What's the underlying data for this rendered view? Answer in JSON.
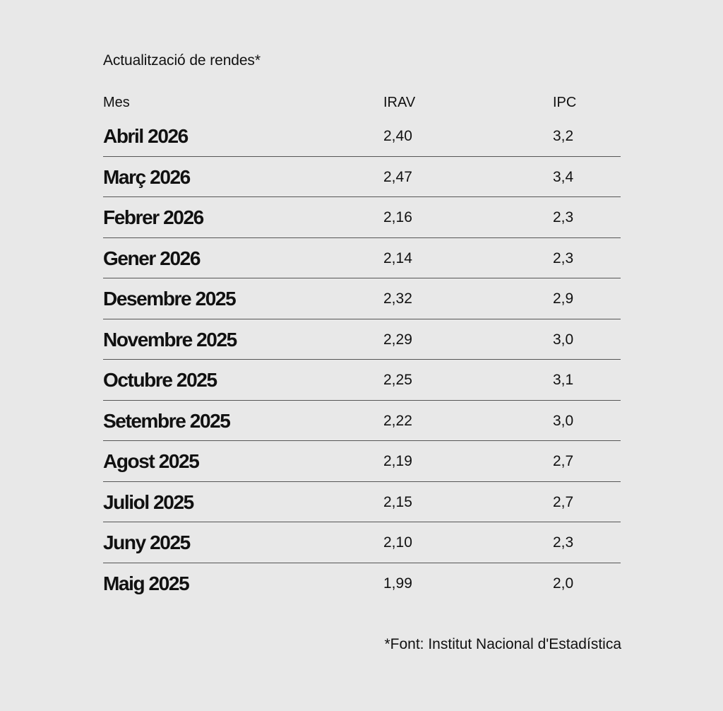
{
  "title": "Actualització de rendes*",
  "columns": {
    "mes": "Mes",
    "irav": "IRAV",
    "ipc": "IPC"
  },
  "rows": [
    {
      "mes": "Abril 2026",
      "irav": "2,40",
      "ipc": "3,2"
    },
    {
      "mes": "Març 2026",
      "irav": "2,47",
      "ipc": "3,4"
    },
    {
      "mes": "Febrer 2026",
      "irav": "2,16",
      "ipc": "2,3"
    },
    {
      "mes": "Gener 2026",
      "irav": "2,14",
      "ipc": "2,3"
    },
    {
      "mes": "Desembre 2025",
      "irav": "2,32",
      "ipc": "2,9"
    },
    {
      "mes": "Novembre 2025",
      "irav": "2,29",
      "ipc": "3,0"
    },
    {
      "mes": "Octubre 2025",
      "irav": "2,25",
      "ipc": "3,1"
    },
    {
      "mes": "Setembre 2025",
      "irav": "2,22",
      "ipc": "3,0"
    },
    {
      "mes": "Agost 2025",
      "irav": "2,19",
      "ipc": "2,7"
    },
    {
      "mes": "Juliol 2025",
      "irav": "2,15",
      "ipc": "2,7"
    },
    {
      "mes": "Juny 2025",
      "irav": "2,10",
      "ipc": "2,3"
    },
    {
      "mes": "Maig 2025",
      "irav": "1,99",
      "ipc": "2,0"
    }
  ],
  "source": "*Font: Institut Nacional d'Estadística"
}
